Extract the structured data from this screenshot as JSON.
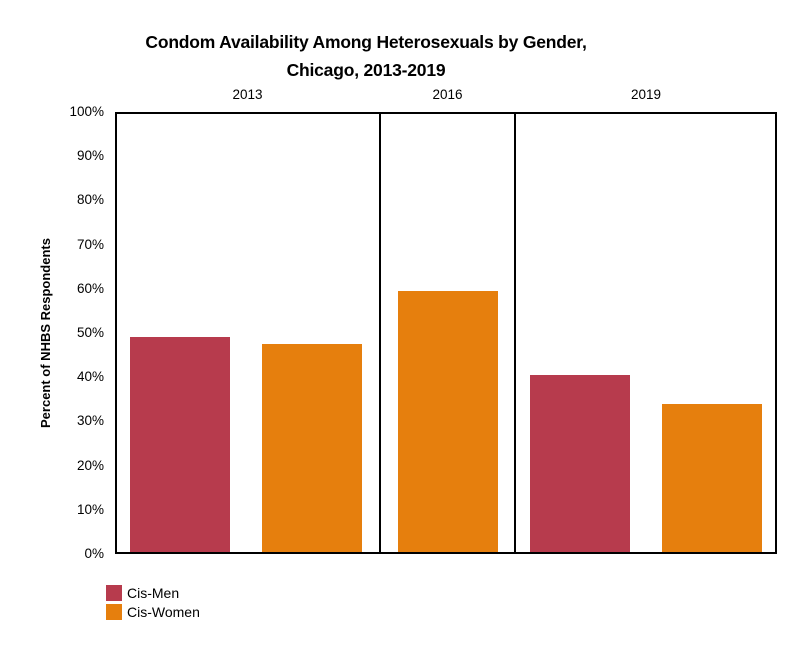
{
  "figure": {
    "title_line1": "Condom Availability Among Heterosexuals by Gender,",
    "title_line2": "Chicago, 2013-2019"
  },
  "chart_data": {
    "type": "bar",
    "title": "Condom Availability Among Heterosexuals by Gender, Chicago, 2013-2019",
    "ylabel": "Percent of NHBS Respondents",
    "ylim": [
      0,
      100
    ],
    "yticks": [
      "0%",
      "10%",
      "20%",
      "30%",
      "40%",
      "50%",
      "60%",
      "70%",
      "80%",
      "90%",
      "100%"
    ],
    "panels": [
      "2013",
      "2016",
      "2019"
    ],
    "series": [
      {
        "name": "Cis-Men",
        "color": "#b73b4d",
        "values": [
          49,
          null,
          40.5
        ]
      },
      {
        "name": "Cis-Women",
        "color": "#e67f0d",
        "values": [
          47.5,
          59.5,
          34
        ]
      }
    ],
    "grid": false,
    "legend_position": "bottom-left"
  },
  "legend": {
    "items": [
      {
        "label": "Cis-Men",
        "color": "#b73b4d"
      },
      {
        "label": "Cis-Women",
        "color": "#e67f0d"
      }
    ]
  }
}
